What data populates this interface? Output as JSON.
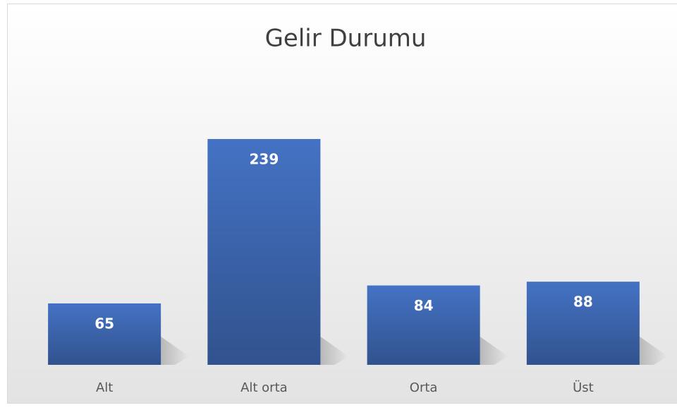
{
  "chart_data": {
    "type": "bar",
    "title": "Gelir Durumu",
    "categories": [
      "Alt",
      "Alt orta",
      "Orta",
      "Üst"
    ],
    "values": [
      65,
      239,
      84,
      88
    ],
    "color": "#4472c4"
  }
}
